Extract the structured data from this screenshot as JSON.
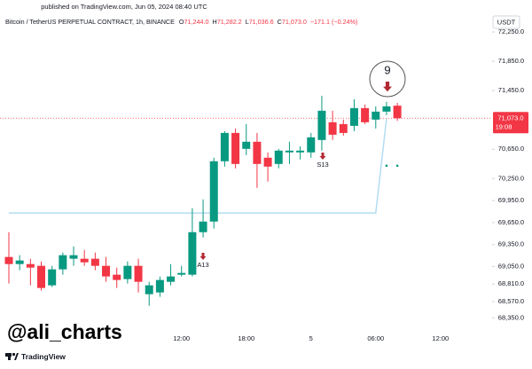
{
  "published": "published on TradingView.com, Jun 05, 2024 08:40 UTC",
  "header": {
    "symbol": "Bitcoin / TetherUS PERPETUAL CONTRACT, 1h, BINANCE",
    "ohlc": [
      {
        "key": "O",
        "value": "71,244.0"
      },
      {
        "key": "H",
        "value": "71,282.2"
      },
      {
        "key": "L",
        "value": "71,036.6"
      },
      {
        "key": "C",
        "value": "71,073.0"
      }
    ],
    "change": "−171.1 (−0.24%)"
  },
  "currency": "USDT",
  "watermark": "@ali_charts",
  "brand": "TradingView",
  "chart_data": {
    "type": "candlestick",
    "categories": [
      null,
      null,
      null,
      null,
      null,
      null,
      null,
      null,
      null,
      null,
      null,
      null,
      null,
      null,
      null,
      null,
      "12:00",
      null,
      null,
      null,
      null,
      null,
      "18:00",
      null,
      null,
      null,
      null,
      null,
      "5",
      null,
      null,
      null,
      null,
      null,
      "06:00",
      null,
      null,
      null,
      null,
      null,
      "12:00"
    ],
    "open": [
      69180,
      69083,
      69083,
      69059,
      68793,
      69011,
      69156,
      69156,
      69156,
      69059,
      68938,
      68878,
      69059,
      68672,
      68696,
      68841,
      68938,
      68938,
      69518,
      69663,
      70486,
      70872,
      70655,
      70752,
      70534,
      70449,
      70607,
      70607,
      70607,
      70776,
      71018,
      70993,
      70969,
      71211,
      71054,
      71163,
      71244.0,
      null,
      null,
      null,
      null
    ],
    "high": [
      69518,
      69204,
      69156,
      69119,
      69059,
      69240,
      69325,
      69277,
      69240,
      69180,
      69035,
      69119,
      69156,
      68841,
      68914,
      69083,
      69059,
      69845,
      69966,
      70534,
      70897,
      70933,
      70993,
      70872,
      70607,
      70655,
      70752,
      70691,
      70872,
      71380,
      71175,
      71054,
      71332,
      71259,
      71235,
      71296,
      71282.2,
      null,
      null,
      null,
      null
    ],
    "low": [
      68817,
      68999,
      68793,
      68720,
      68769,
      68938,
      69059,
      69059,
      68999,
      68841,
      68757,
      68817,
      68696,
      68515,
      68636,
      68793,
      68914,
      68914,
      69446,
      69567,
      70413,
      70389,
      70570,
      70123,
      70208,
      70389,
      70449,
      70510,
      70534,
      70631,
      70776,
      70836,
      70897,
      70993,
      70933,
      71114,
      71036.6,
      null,
      null,
      null,
      null
    ],
    "close": [
      69083,
      69132,
      69035,
      68757,
      69011,
      69204,
      69204,
      69107,
      69059,
      68914,
      68866,
      69059,
      68841,
      68793,
      68866,
      68914,
      68962,
      69518,
      69663,
      70486,
      70872,
      70449,
      70752,
      70449,
      70413,
      70631,
      70631,
      70631,
      70812,
      71175,
      70848,
      70872,
      71211,
      71018,
      71163,
      71235,
      71073.0,
      null,
      null,
      null,
      null
    ],
    "up_color": "#089981",
    "down_color": "#f23645",
    "support_line": {
      "color": "#b3dcf2",
      "values": [
        69780,
        69780,
        69780,
        69780,
        69780,
        69780,
        69780,
        69780,
        69780,
        69780,
        69780,
        69780,
        69780,
        69780,
        69780,
        69780,
        69780,
        69780,
        69780,
        69780,
        69780,
        69780,
        69780,
        69780,
        69780,
        69780,
        69780,
        69780,
        69780,
        69780,
        69780,
        69780,
        69780,
        69780,
        69780,
        71070,
        null,
        null,
        null,
        null,
        null
      ]
    },
    "dots": {
      "color": "#089981",
      "values": [
        null,
        null,
        null,
        null,
        null,
        null,
        null,
        null,
        null,
        null,
        null,
        null,
        null,
        null,
        null,
        null,
        null,
        null,
        null,
        null,
        null,
        null,
        null,
        null,
        null,
        null,
        null,
        null,
        null,
        null,
        null,
        null,
        null,
        null,
        null,
        70425,
        70425,
        null,
        null,
        null,
        null
      ]
    },
    "annotations": [
      {
        "text": "A13",
        "color": "#089981"
      },
      {
        "text": "S13",
        "color": "#f7a21b"
      },
      {
        "text": "9",
        "color": "#22ab94"
      }
    ],
    "price_label": {
      "value": 71073.0,
      "label": "71,073.0"
    },
    "countdown": "19:08",
    "ylim": [
      68087,
      72323
    ],
    "yticks": [
      {
        "value": 72250,
        "label": "72,250.0"
      },
      {
        "value": 71850,
        "label": "71,850.0"
      },
      {
        "value": 71450,
        "label": "71,450.0"
      },
      {
        "value": 70650,
        "label": "70,650.0"
      },
      {
        "value": 70250,
        "label": "70,250.0"
      },
      {
        "value": 69950,
        "label": "69,950.0"
      },
      {
        "value": 69650,
        "label": "69,650.0"
      },
      {
        "value": 69350,
        "label": "69,350.0"
      },
      {
        "value": 69050,
        "label": "69,050.0"
      },
      {
        "value": 68810,
        "label": "68,810.0"
      },
      {
        "value": 68570,
        "label": "68,570.0"
      },
      {
        "value": 68350,
        "label": "68,350.0"
      }
    ]
  }
}
